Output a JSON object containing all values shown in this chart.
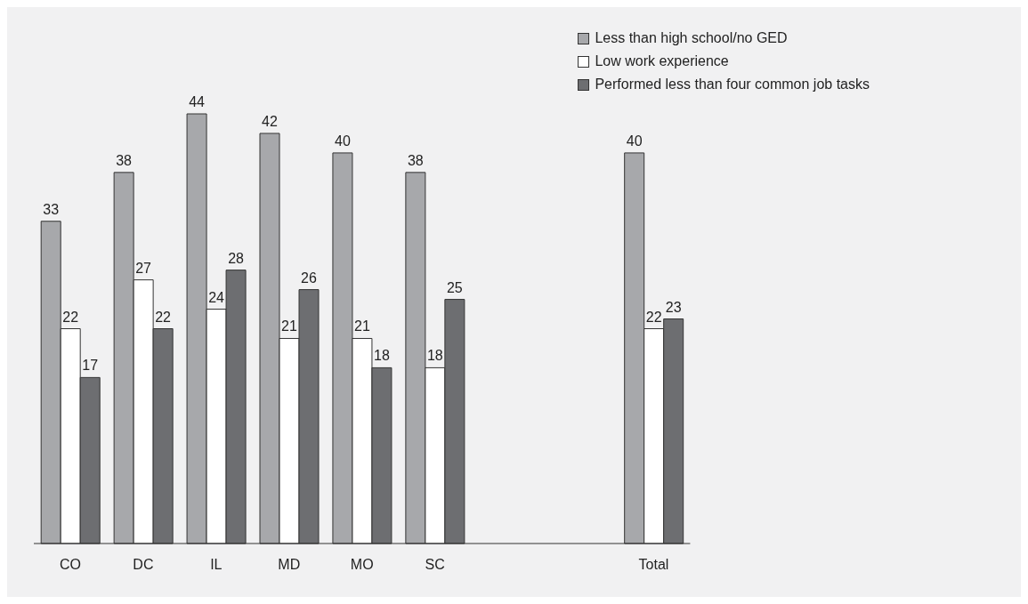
{
  "chart_data": {
    "type": "bar",
    "categories": [
      "CO",
      "DC",
      "IL",
      "MD",
      "MO",
      "SC",
      null,
      null,
      "Total"
    ],
    "series": [
      {
        "name": "Less than high school/no GED",
        "color": "#a7a8ab",
        "values": [
          33,
          38,
          44,
          42,
          40,
          38,
          null,
          null,
          40
        ]
      },
      {
        "name": "Low work experience",
        "color": "#ffffff",
        "values": [
          22,
          27,
          24,
          21,
          21,
          18,
          null,
          null,
          22
        ]
      },
      {
        "name": "Performed less than four common job tasks",
        "color": "#6d6e71",
        "values": [
          17,
          22,
          28,
          26,
          18,
          25,
          null,
          null,
          23
        ]
      }
    ],
    "data_labels": true,
    "legend": "top right",
    "grid": false
  }
}
